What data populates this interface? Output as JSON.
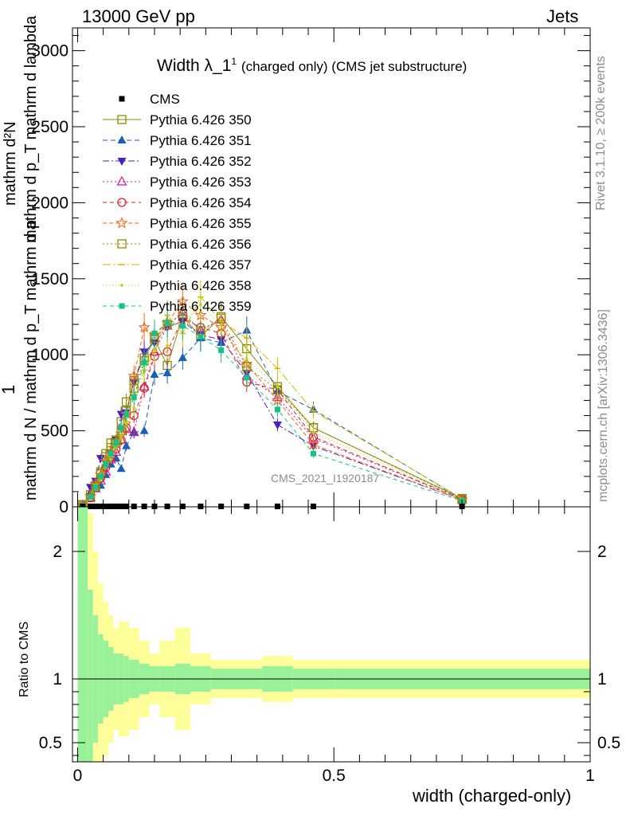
{
  "header": {
    "left_label": "13000 GeV pp",
    "right_label": "Jets"
  },
  "title": {
    "main": "Width λ_1",
    "sup": "1",
    "suffix": "(charged only) (CMS jet substructure)"
  },
  "watermark": "CMS_2021_I1920187",
  "side_labels": {
    "rivet": "Rivet 3.1.10, ≥ 200k events",
    "mcplots": "mcplots.cern.ch [arXiv:1306.3436]"
  },
  "axes": {
    "ylabel_top_numerator": "mathrm d²N",
    "ylabel_top_denominator": "mathrm d p_T mathrm d lambda",
    "ylabel_prefix": "1",
    "ylabel_bottom": "mathrm d N / mathrm d p_T mathrm d p",
    "ratio_ylabel": "Ratio to CMS",
    "xlabel": "width (charged-only)",
    "main_yticks": [
      "0",
      "500",
      "1000",
      "1500",
      "2000",
      "2500",
      "3000"
    ],
    "ratio_yticks": [
      "0.5",
      "1",
      "2"
    ],
    "xticks": [
      "0",
      "0.5",
      "1"
    ]
  },
  "colors": {
    "frame": "#000000",
    "band_inner": "#99f299",
    "band_outer": "#ffff99"
  },
  "chart_data": {
    "type": "line",
    "xlim": [
      -0.01,
      1.0
    ],
    "ylim": [
      0,
      3150
    ],
    "ratio_ylim": [
      0.35,
      2.35
    ],
    "bin_edges": [
      0.0,
      0.02,
      0.03,
      0.04,
      0.05,
      0.06,
      0.07,
      0.08,
      0.09,
      0.1,
      0.12,
      0.14,
      0.16,
      0.19,
      0.22,
      0.26,
      0.3,
      0.36,
      0.42,
      0.5,
      1.0
    ],
    "x": [
      0.01,
      0.025,
      0.035,
      0.045,
      0.055,
      0.065,
      0.075,
      0.085,
      0.095,
      0.11,
      0.13,
      0.15,
      0.175,
      0.205,
      0.24,
      0.28,
      0.33,
      0.39,
      0.46,
      0.75
    ],
    "cms_points": [
      3,
      3,
      3,
      3,
      3,
      3,
      3,
      3,
      3,
      3,
      3,
      3,
      3,
      3,
      3,
      3,
      3,
      3,
      3,
      3
    ],
    "ratio_inner_band": [
      2.4,
      1.7,
      1.5,
      1.35,
      1.3,
      1.25,
      1.2,
      1.2,
      1.18,
      1.15,
      1.12,
      1.1,
      1.1,
      1.12,
      1.1,
      1.08,
      1.08,
      1.1,
      1.08,
      1.08
    ],
    "ratio_outer_band": [
      2.4,
      2.3,
      2.0,
      1.75,
      1.6,
      1.5,
      1.4,
      1.45,
      1.45,
      1.4,
      1.3,
      1.2,
      1.3,
      1.4,
      1.2,
      1.15,
      1.15,
      1.18,
      1.15,
      1.15
    ],
    "series": [
      {
        "name": "Pythia 6.426 350",
        "color": "#8b8b00",
        "marker": "open-square",
        "dash": "",
        "values": [
          10,
          60,
          130,
          220,
          330,
          390,
          420,
          560,
          630,
          830,
          980,
          1100,
          930,
          1250,
          1120,
          1250,
          1040,
          790,
          520,
          55
        ]
      },
      {
        "name": "Pythia 6.426 351",
        "color": "#1b5fb4",
        "marker": "filled-triangle-up",
        "dash": "6,4",
        "values": [
          0,
          90,
          130,
          140,
          210,
          280,
          320,
          250,
          400,
          490,
          500,
          870,
          880,
          980,
          1110,
          1080,
          1160,
          760,
          640,
          50
        ]
      },
      {
        "name": "Pythia 6.426 352",
        "color": "#4b1fbf",
        "marker": "filled-triangle-down",
        "dash": "8,3,2,3",
        "values": [
          5,
          130,
          170,
          320,
          260,
          350,
          440,
          610,
          620,
          820,
          1020,
          1080,
          1180,
          1220,
          1130,
          1100,
          880,
          540,
          400,
          45
        ]
      },
      {
        "name": "Pythia 6.426 353",
        "color": "#c8189e",
        "marker": "open-triangle-up",
        "dash": "2,3",
        "values": [
          5,
          60,
          120,
          170,
          230,
          310,
          360,
          440,
          510,
          490,
          790,
          1020,
          1190,
          1280,
          1160,
          1230,
          860,
          720,
          450,
          48
        ]
      },
      {
        "name": "Pythia 6.426 354",
        "color": "#dd1f1f",
        "marker": "open-circle",
        "dash": "5,4",
        "values": [
          5,
          60,
          140,
          190,
          260,
          320,
          380,
          440,
          520,
          600,
          780,
          990,
          1020,
          1240,
          1180,
          1140,
          820,
          770,
          460,
          50
        ]
      },
      {
        "name": "Pythia 6.426 355",
        "color": "#f06a1a",
        "marker": "open-star",
        "dash": "5,3",
        "values": [
          10,
          70,
          150,
          210,
          300,
          360,
          430,
          480,
          610,
          860,
          1180,
          1130,
          1210,
          1350,
          1260,
          1180,
          940,
          700,
          410,
          45
        ]
      },
      {
        "name": "Pythia 6.426 356",
        "color": "#8b8b00",
        "marker": "open-square",
        "dash": "2,3",
        "values": [
          15,
          80,
          140,
          230,
          350,
          420,
          440,
          500,
          690,
          780,
          960,
          1110,
          1200,
          1270,
          1160,
          1240,
          920,
          770,
          520,
          50
        ]
      },
      {
        "name": "Pythia 6.426 357",
        "color": "#d9b800",
        "marker": "tick",
        "dash": "10,3,2,3",
        "values": [
          10,
          70,
          150,
          210,
          290,
          330,
          400,
          470,
          560,
          740,
          900,
          1020,
          1260,
          1140,
          1380,
          1220,
          1110,
          910,
          630,
          55
        ]
      },
      {
        "name": "Pythia 6.426 358",
        "color": "#b5d10f",
        "marker": "dot",
        "dash": "1,3",
        "values": [
          10,
          60,
          120,
          180,
          260,
          310,
          390,
          460,
          550,
          650,
          890,
          1040,
          1060,
          1200,
          1330,
          1200,
          970,
          790,
          490,
          52
        ]
      },
      {
        "name": "Pythia 6.426 359",
        "color": "#17c28a",
        "marker": "filled-square",
        "dash": "5,4",
        "values": [
          10,
          65,
          130,
          200,
          280,
          350,
          420,
          520,
          610,
          720,
          950,
          1140,
          1210,
          1190,
          1120,
          1030,
          850,
          640,
          350,
          40
        ]
      }
    ],
    "legend": {
      "entries": [
        "CMS"
      ],
      "placement": "top-left"
    }
  }
}
